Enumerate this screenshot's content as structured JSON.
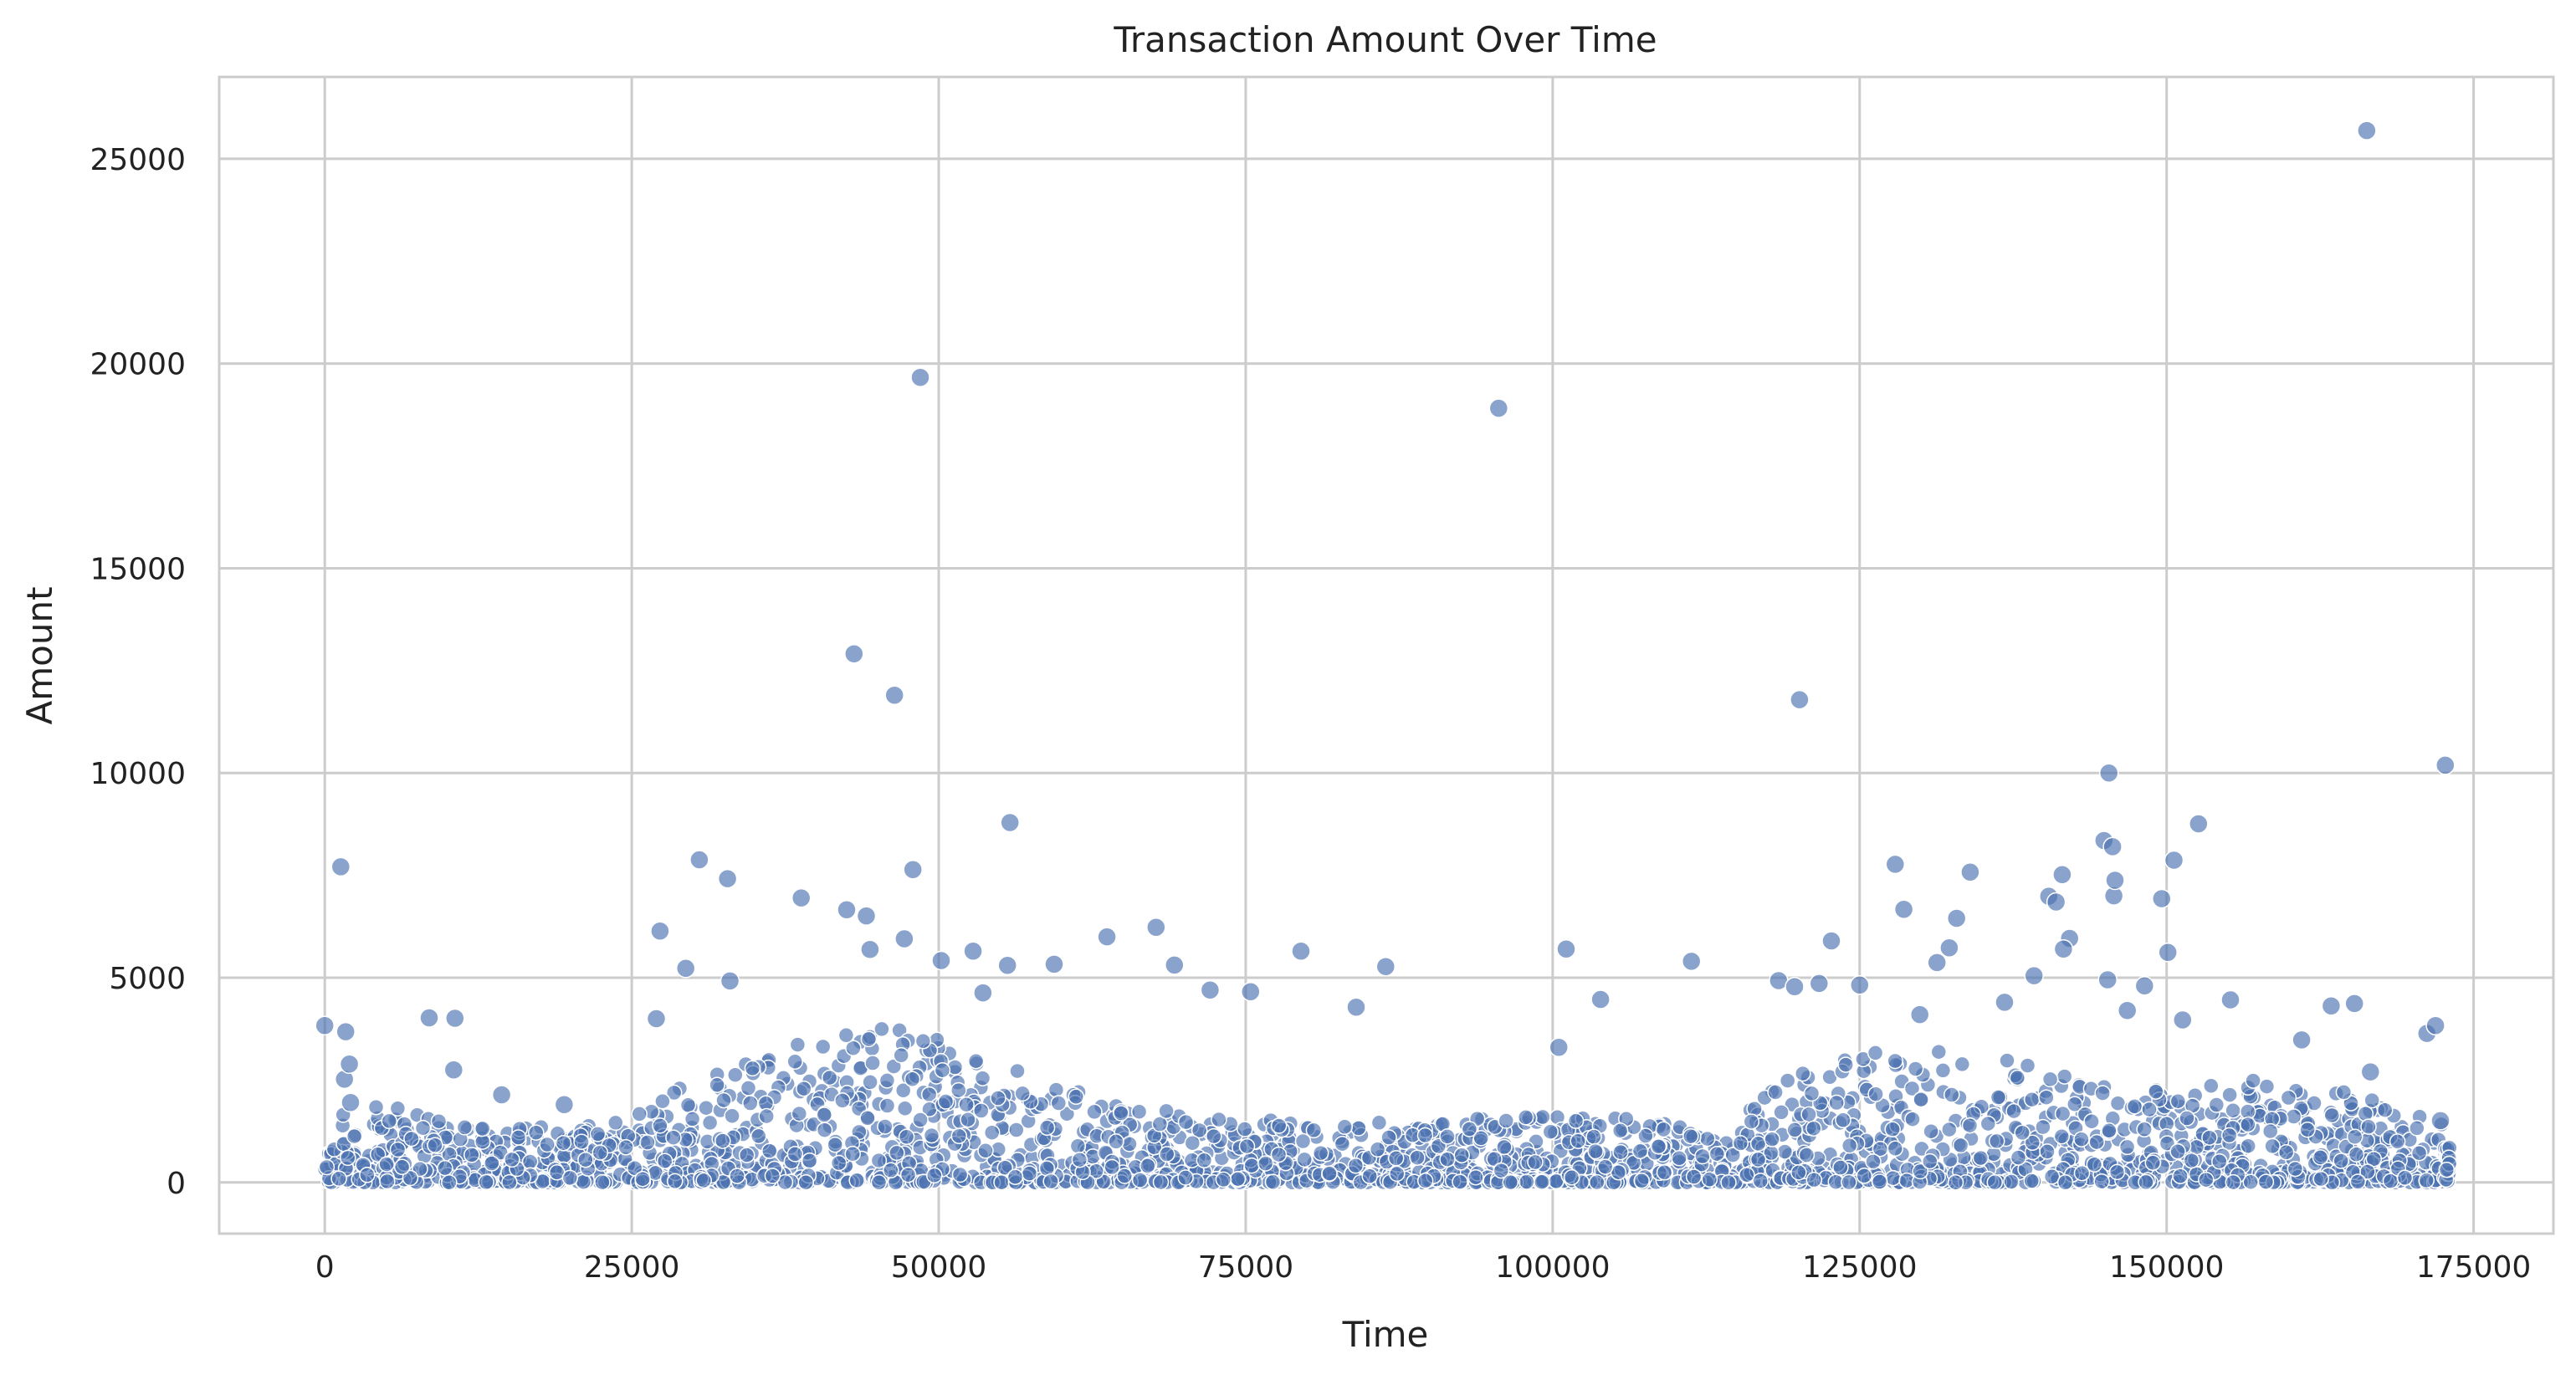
{
  "chart_data": {
    "type": "scatter",
    "title": "Transaction Amount Over Time",
    "xlabel": "Time",
    "ylabel": "Amount",
    "xlim": [
      -8600,
      181500
    ],
    "ylim": [
      -1250,
      27000
    ],
    "xticks": [
      0,
      25000,
      50000,
      75000,
      100000,
      125000,
      150000,
      175000
    ],
    "yticks": [
      0,
      5000,
      10000,
      15000,
      20000,
      25000
    ],
    "grid": true,
    "legend": "none",
    "point_color": "#4c72b0",
    "point_alpha": 0.65,
    "outliers": [
      [
        0,
        3830
      ],
      [
        1300,
        7710
      ],
      [
        1600,
        2520
      ],
      [
        1700,
        3680
      ],
      [
        2000,
        2890
      ],
      [
        2100,
        1950
      ],
      [
        8500,
        4020
      ],
      [
        10600,
        4010
      ],
      [
        10500,
        2750
      ],
      [
        14400,
        2140
      ],
      [
        19500,
        1900
      ],
      [
        27000,
        4000
      ],
      [
        27300,
        6140
      ],
      [
        29400,
        5230
      ],
      [
        30500,
        7880
      ],
      [
        32800,
        7420
      ],
      [
        33000,
        4920
      ],
      [
        38800,
        6950
      ],
      [
        42500,
        6660
      ],
      [
        43100,
        12910
      ],
      [
        44100,
        6510
      ],
      [
        44400,
        5690
      ],
      [
        46400,
        11900
      ],
      [
        47200,
        5950
      ],
      [
        47900,
        7640
      ],
      [
        48500,
        19660
      ],
      [
        50200,
        5420
      ],
      [
        52800,
        5650
      ],
      [
        53600,
        4630
      ],
      [
        55800,
        8790
      ],
      [
        55600,
        5300
      ],
      [
        59400,
        5330
      ],
      [
        63700,
        6000
      ],
      [
        67700,
        6230
      ],
      [
        69200,
        5310
      ],
      [
        72100,
        4700
      ],
      [
        75400,
        4660
      ],
      [
        79500,
        5650
      ],
      [
        84000,
        4280
      ],
      [
        86400,
        5270
      ],
      [
        95600,
        18910
      ],
      [
        100500,
        3300
      ],
      [
        101100,
        5700
      ],
      [
        103900,
        4470
      ],
      [
        111300,
        5400
      ],
      [
        118400,
        4930
      ],
      [
        119700,
        4780
      ],
      [
        120100,
        11790
      ],
      [
        121700,
        4860
      ],
      [
        122700,
        5900
      ],
      [
        125000,
        4820
      ],
      [
        127900,
        7770
      ],
      [
        128600,
        6670
      ],
      [
        129900,
        4100
      ],
      [
        131300,
        5370
      ],
      [
        132300,
        5730
      ],
      [
        132900,
        6450
      ],
      [
        134000,
        7580
      ],
      [
        136800,
        4400
      ],
      [
        139200,
        5050
      ],
      [
        140400,
        6990
      ],
      [
        141000,
        6850
      ],
      [
        141500,
        7520
      ],
      [
        142100,
        5960
      ],
      [
        141600,
        5700
      ],
      [
        144900,
        8350
      ],
      [
        145300,
        10000
      ],
      [
        145600,
        8200
      ],
      [
        145700,
        7000
      ],
      [
        145800,
        7380
      ],
      [
        145200,
        4950
      ],
      [
        146800,
        4200
      ],
      [
        148200,
        4800
      ],
      [
        149600,
        6930
      ],
      [
        150100,
        5620
      ],
      [
        150600,
        7870
      ],
      [
        151300,
        3970
      ],
      [
        152600,
        8760
      ],
      [
        155200,
        4460
      ],
      [
        161000,
        3480
      ],
      [
        163400,
        4310
      ],
      [
        165300,
        4370
      ],
      [
        166300,
        25690
      ],
      [
        166600,
        2700
      ],
      [
        171200,
        3640
      ],
      [
        171900,
        3830
      ],
      [
        172700,
        10190
      ],
      [
        172300,
        1510
      ]
    ]
  }
}
